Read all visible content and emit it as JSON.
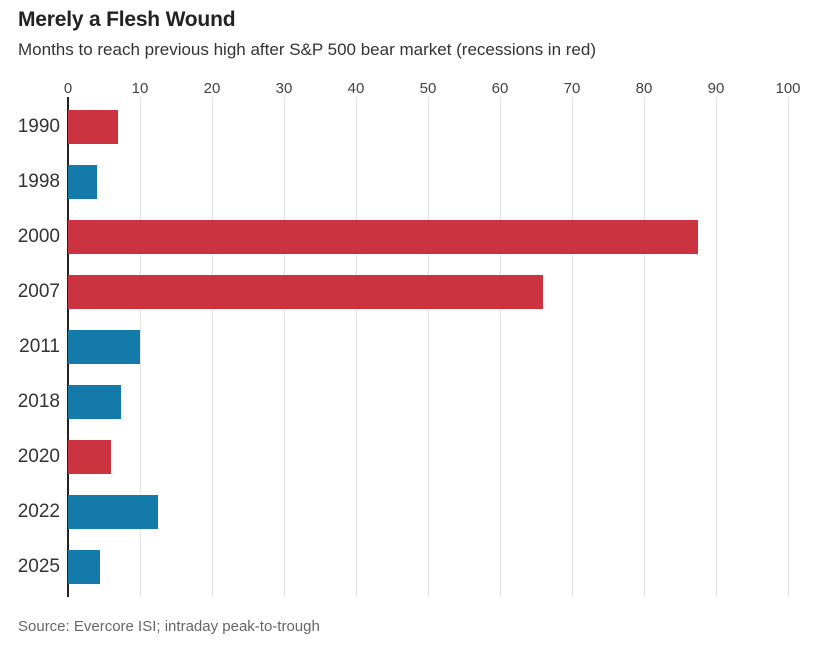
{
  "header": {
    "title": "Merely a Flesh Wound",
    "subtitle": "Months to reach previous high after S&P 500 bear market (recessions in red)"
  },
  "chart_data": {
    "type": "bar",
    "orientation": "horizontal",
    "title": "Merely a Flesh Wound",
    "subtitle": "Months to reach previous high after S&P 500 bear market (recessions in red)",
    "categories": [
      "1990",
      "1998",
      "2000",
      "2007",
      "2011",
      "2018",
      "2020",
      "2022",
      "2025"
    ],
    "values": [
      7,
      4,
      87.5,
      66,
      10,
      7.3,
      6,
      12.5,
      4.4
    ],
    "recession": [
      true,
      false,
      true,
      true,
      false,
      false,
      true,
      false,
      false
    ],
    "colors": {
      "recession_red": "#cc3340",
      "non_recession_blue": "#137aa9"
    },
    "xticks": [
      0,
      10,
      20,
      30,
      40,
      50,
      60,
      70,
      80,
      90,
      100
    ],
    "xlim": [
      0,
      100
    ],
    "xlabel": "",
    "ylabel": "",
    "grid": "vertical",
    "legend": "none (recessions shown in red, others in blue)"
  },
  "footer": {
    "source": "Source: Evercore ISI; intraday peak-to-trough"
  }
}
